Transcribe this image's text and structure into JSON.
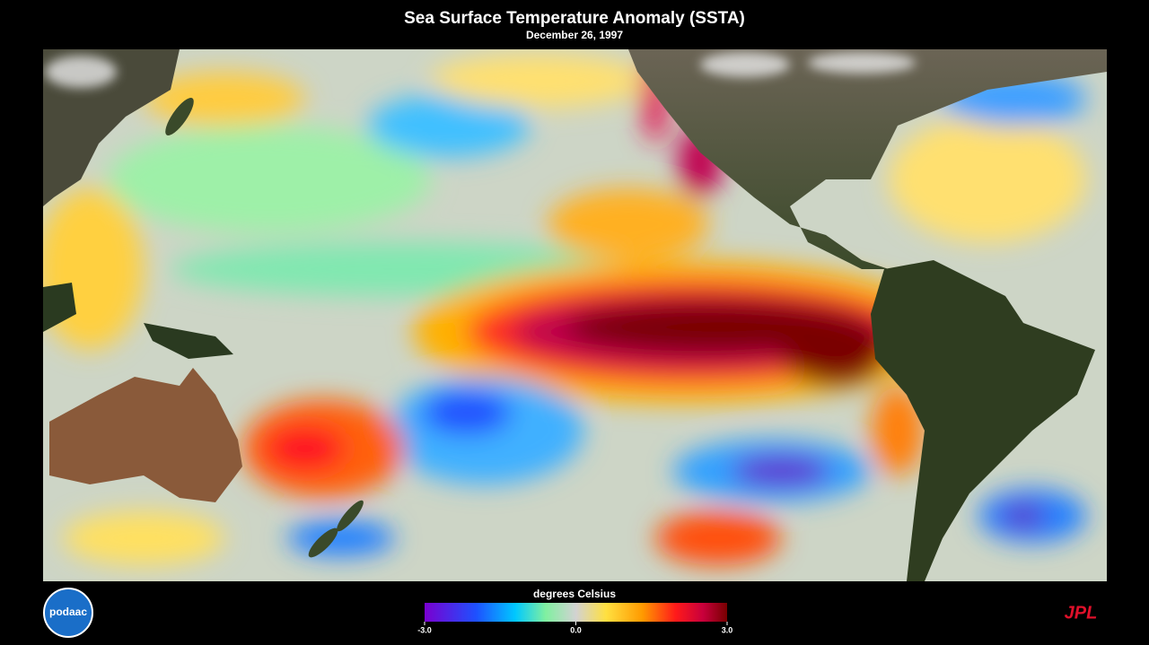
{
  "header": {
    "title": "Sea Surface Temperature Anomaly (SSTA)",
    "subtitle": "December 26, 1997"
  },
  "colorbar": {
    "label": "degrees Celsius",
    "range": [
      -3,
      3
    ],
    "ticks": [
      {
        "value": -3,
        "label": "-3.0"
      },
      {
        "value": 0,
        "label": "0.0"
      },
      {
        "value": 3,
        "label": "3.0"
      }
    ]
  },
  "logos": {
    "left": "podaac",
    "right": "JPL"
  }
}
